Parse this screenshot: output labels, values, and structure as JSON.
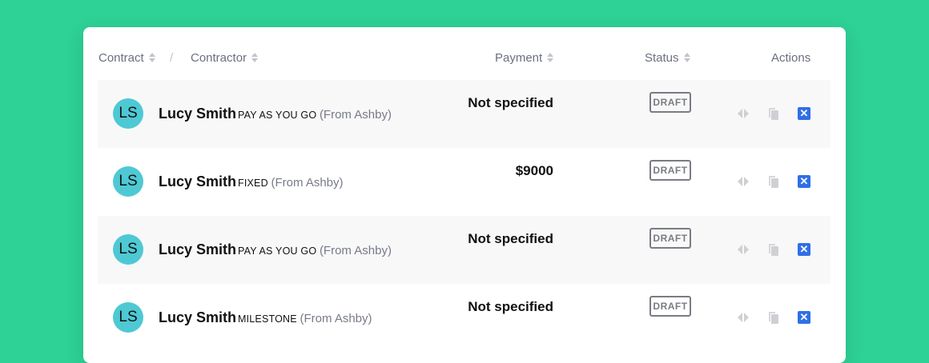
{
  "header": {
    "contract": "Contract",
    "separator": "/",
    "contractor": "Contractor",
    "payment": "Payment",
    "status": "Status",
    "actions": "Actions"
  },
  "rows": [
    {
      "initials": "LS",
      "name": "Lucy Smith",
      "type": "PAY AS YOU GO",
      "source": "(From Ashby)",
      "payment": "Not specified",
      "status": "DRAFT"
    },
    {
      "initials": "LS",
      "name": "Lucy Smith",
      "type": "FIXED",
      "source": "(From Ashby)",
      "payment": "$9000",
      "status": "DRAFT"
    },
    {
      "initials": "LS",
      "name": "Lucy Smith",
      "type": "PAY AS YOU GO",
      "source": "(From Ashby)",
      "payment": "Not specified",
      "status": "DRAFT"
    },
    {
      "initials": "LS",
      "name": "Lucy Smith",
      "type": "MILESTONE",
      "source": "(From Ashby)",
      "payment": "Not specified",
      "status": "DRAFT"
    }
  ],
  "icons": {
    "merge": "merge-arrows-icon",
    "copy": "copy-icon",
    "delete": "delete-x-icon"
  },
  "colors": {
    "background": "#2ed196",
    "avatar": "#4ec9d4",
    "delete": "#2f6fe6",
    "badge": "#7a7c84"
  }
}
